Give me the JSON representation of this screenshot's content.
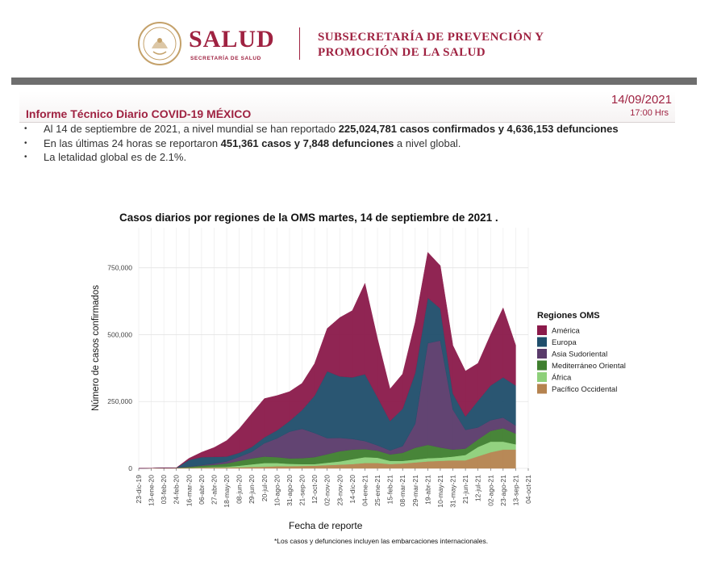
{
  "header": {
    "brand": "SALUD",
    "brand_sub": "SECRETARÍA DE SALUD",
    "subsecretaria_line1": "SUBSECRETARÍA DE PREVENCIÓN Y",
    "subsecretaria_line2": "PROMOCIÓN DE LA SALUD",
    "brand_color": "#9f2241"
  },
  "report": {
    "title": "Informe Técnico Diario COVID-19 MÉXICO",
    "date": "14/09/2021",
    "time": "17:00 Hrs"
  },
  "bullets": [
    {
      "pre": "Al 14 de septiembre de 2021, a nivel mundial se han reportado ",
      "bold": "225,024,781 casos confirmados y 4,636,153 defunciones",
      "post": ""
    },
    {
      "pre": "En las últimas 24 horas se reportaron ",
      "bold": "451,361 casos y 7,848 defunciones",
      "post": " a nivel global."
    },
    {
      "pre": "La letalidad global es de 2.1%.",
      "bold": "",
      "post": ""
    }
  ],
  "chart_data": {
    "type": "area",
    "stacked": true,
    "title": "Casos diarios por regiones de la OMS martes, 14 de septiembre de 2021 .",
    "xlabel": "Fecha de reporte",
    "ylabel": "Número de casos confirmados",
    "ylim": [
      0,
      900000
    ],
    "y_ticks": [
      0,
      250000,
      500000,
      750000
    ],
    "y_tick_labels": [
      "0",
      "250,000",
      "500,000",
      "750,000"
    ],
    "x_tick_labels": [
      "23-dic-19",
      "13-ene-20",
      "03-feb-20",
      "24-feb-20",
      "16-mar-20",
      "06-abr-20",
      "27-abr-20",
      "18-may-20",
      "08-jun-20",
      "29-jun-20",
      "20-jul-20",
      "10-ago-20",
      "31-ago-20",
      "21-sep-20",
      "12-oct-20",
      "02-nov-20",
      "23-nov-20",
      "14-dic-20",
      "04-ene-21",
      "25-ene-21",
      "15-feb-21",
      "08-mar-21",
      "29-mar-21",
      "19-abr-21",
      "10-may-21",
      "31-may-21",
      "21-jun-21",
      "12-jul-21",
      "02-ago-21",
      "23-ago-21",
      "13-sep-21",
      "04-oct-21"
    ],
    "grid": true,
    "legend_title": "Regiones OMS",
    "legend_position": "right",
    "x": [
      "2019-12-23",
      "2020-02-24",
      "2020-03-16",
      "2020-04-06",
      "2020-04-27",
      "2020-05-18",
      "2020-06-08",
      "2020-06-29",
      "2020-07-20",
      "2020-08-10",
      "2020-08-31",
      "2020-09-21",
      "2020-10-12",
      "2020-11-02",
      "2020-11-23",
      "2020-12-14",
      "2021-01-04",
      "2021-01-25",
      "2021-02-15",
      "2021-03-08",
      "2021-03-29",
      "2021-04-19",
      "2021-05-10",
      "2021-05-31",
      "2021-06-21",
      "2021-07-12",
      "2021-08-02",
      "2021-08-23",
      "2021-09-13"
    ],
    "series": [
      {
        "name": "Pacífico Occidental",
        "color": "#b5834f",
        "values": [
          0,
          2000,
          2000,
          3000,
          3000,
          3000,
          4000,
          5000,
          6000,
          8000,
          8000,
          9000,
          10000,
          12000,
          14000,
          16000,
          20000,
          20000,
          16000,
          18000,
          22000,
          26000,
          28000,
          30000,
          30000,
          45000,
          60000,
          70000,
          70000
        ]
      },
      {
        "name": "África",
        "color": "#8ed07a",
        "values": [
          0,
          0,
          500,
          1000,
          2000,
          3000,
          6000,
          10000,
          14000,
          12000,
          9000,
          7000,
          6000,
          9000,
          12000,
          18000,
          22000,
          20000,
          12000,
          10000,
          11000,
          12000,
          12000,
          14000,
          20000,
          35000,
          40000,
          30000,
          20000
        ]
      },
      {
        "name": "Mediterráneo Oriental",
        "color": "#3f7f2f",
        "values": [
          0,
          0,
          3000,
          6000,
          8000,
          12000,
          18000,
          22000,
          24000,
          22000,
          20000,
          22000,
          26000,
          32000,
          38000,
          36000,
          30000,
          26000,
          24000,
          30000,
          44000,
          50000,
          38000,
          26000,
          24000,
          28000,
          40000,
          50000,
          40000
        ]
      },
      {
        "name": "Asia Sudoriental",
        "color": "#5a3b6b",
        "values": [
          0,
          0,
          1000,
          2000,
          5000,
          8000,
          15000,
          25000,
          50000,
          70000,
          100000,
          110000,
          90000,
          60000,
          50000,
          40000,
          30000,
          20000,
          15000,
          25000,
          90000,
          380000,
          400000,
          150000,
          70000,
          45000,
          40000,
          40000,
          30000
        ]
      },
      {
        "name": "Europa",
        "color": "#1f4e6b",
        "values": [
          0,
          0,
          25000,
          30000,
          25000,
          18000,
          15000,
          18000,
          22000,
          30000,
          40000,
          70000,
          140000,
          250000,
          230000,
          230000,
          250000,
          180000,
          110000,
          140000,
          190000,
          170000,
          120000,
          60000,
          50000,
          100000,
          130000,
          150000,
          150000
        ]
      },
      {
        "name": "América",
        "color": "#8b1a4a",
        "values": [
          0,
          0,
          6000,
          18000,
          35000,
          60000,
          90000,
          125000,
          145000,
          130000,
          110000,
          100000,
          120000,
          160000,
          220000,
          250000,
          340000,
          220000,
          120000,
          130000,
          190000,
          170000,
          160000,
          180000,
          170000,
          140000,
          190000,
          260000,
          150000
        ]
      }
    ]
  },
  "footnote": "*Los casos y defunciones incluyen las embarcaciones internacionales."
}
